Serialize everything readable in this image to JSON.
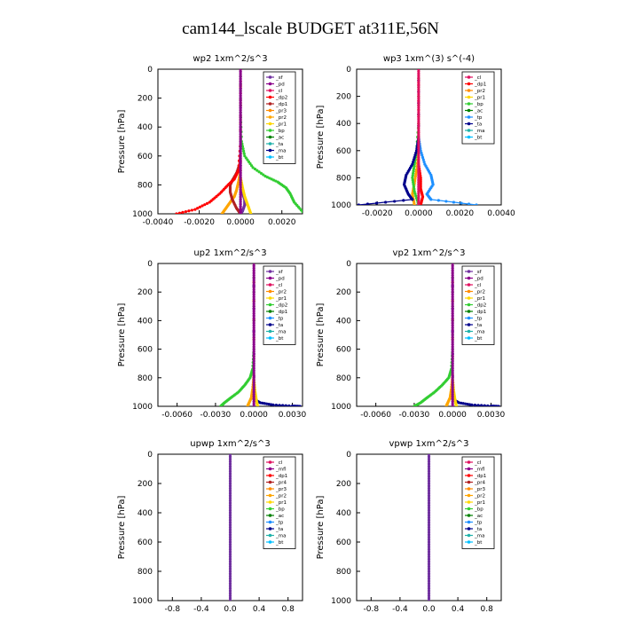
{
  "figure": {
    "title": "cam144_lscale  BUDGET at311E,56N"
  },
  "chart_data": [
    {
      "type": "line",
      "title": "wp2  1xm^2/s^3",
      "ylabel": "Pressure [hPa]",
      "ylim": [
        1000,
        0
      ],
      "xlim": [
        -0.004,
        0.003
      ],
      "xticks": [
        "-0.0040",
        "-0.0020",
        "0.0000",
        "0.0020"
      ],
      "xtick_values": [
        -0.004,
        -0.002,
        0,
        0.002
      ],
      "yticks": [
        "0",
        "200",
        "400",
        "600",
        "800",
        "1000"
      ],
      "yref": 1000,
      "legend_position": "top-right",
      "legend": [
        {
          "name": "_sf",
          "color": "#7030a0"
        },
        {
          "name": "_pd",
          "color": "#8b008b"
        },
        {
          "name": "_cl",
          "color": "#e0115f"
        },
        {
          "name": "_dp2",
          "color": "#ff0000"
        },
        {
          "name": "_dp1",
          "color": "#b22222"
        },
        {
          "name": "_pr3",
          "color": "#ff8c00"
        },
        {
          "name": "_pr2",
          "color": "#ffa500"
        },
        {
          "name": "_pr1",
          "color": "#ffd700"
        },
        {
          "name": "_bp",
          "color": "#32cd32"
        },
        {
          "name": "_ac",
          "color": "#008000"
        },
        {
          "name": "_ta",
          "color": "#20b2aa"
        },
        {
          "name": "_ma",
          "color": "#00008b"
        },
        {
          "name": "_bt",
          "color": "#00bfff"
        }
      ],
      "series": [
        {
          "color": "#8b008b",
          "x": [
            0,
            0,
            0,
            0,
            0,
            0,
            0,
            0,
            0,
            0,
            0
          ],
          "y": [
            0,
            100,
            200,
            300,
            400,
            500,
            600,
            700,
            800,
            900,
            1000
          ]
        },
        {
          "color": "#32cd32",
          "x": [
            0,
            0,
            5e-05,
            0.0002,
            0.0006,
            0.0012,
            0.0018,
            0.0022,
            0.0024,
            0.0026,
            0.003
          ],
          "y": [
            0,
            300,
            500,
            600,
            680,
            740,
            780,
            820,
            860,
            920,
            985
          ]
        },
        {
          "color": "#ff0000",
          "x": [
            0,
            0,
            -0.0001,
            -0.0003,
            -0.0006,
            -0.001,
            -0.0015,
            -0.0022,
            -0.0031
          ],
          "y": [
            0,
            500,
            700,
            760,
            800,
            860,
            920,
            970,
            1000
          ]
        },
        {
          "color": "#b22222",
          "x": [
            0,
            0,
            -0.0002,
            -0.0004,
            -0.0005,
            -0.0005,
            -0.0004,
            -0.0002,
            0
          ],
          "y": [
            0,
            640,
            720,
            770,
            800,
            850,
            900,
            960,
            1000
          ]
        },
        {
          "color": "#ffa500",
          "x": [
            0,
            0,
            -0.0001,
            -0.0002,
            -0.0003,
            -0.0005,
            -0.0007,
            -0.0009
          ],
          "y": [
            0,
            700,
            780,
            840,
            880,
            920,
            960,
            1000
          ]
        },
        {
          "color": "#ffd700",
          "x": [
            0,
            0,
            0.0001,
            0.0002,
            0.0003,
            0.0004,
            0.0005
          ],
          "y": [
            0,
            750,
            820,
            880,
            920,
            960,
            1000
          ]
        },
        {
          "color": "#7030a0",
          "x": [
            0,
            0,
            0.0001,
            0.0002,
            0.0002,
            0.0001,
            0
          ],
          "y": [
            0,
            800,
            860,
            900,
            940,
            980,
            1000
          ]
        }
      ]
    },
    {
      "type": "line",
      "title": "wp3  1xm^(3) s^(-4)",
      "ylabel": "Pressure [hPa]",
      "ylim": [
        1000,
        0
      ],
      "xlim": [
        -0.003,
        0.004
      ],
      "xticks": [
        "-0.0020",
        "0.0000",
        "0.0020",
        "0.0040"
      ],
      "xtick_values": [
        -0.002,
        0,
        0.002,
        0.004
      ],
      "yticks": [
        "0",
        "200",
        "400",
        "600",
        "800",
        "1000"
      ],
      "yref": 1000,
      "legend_position": "top-right",
      "legend": [
        {
          "name": "_cl",
          "color": "#e0115f"
        },
        {
          "name": "_dp1",
          "color": "#ff0000"
        },
        {
          "name": "_pr2",
          "color": "#ff8c00"
        },
        {
          "name": "_pr1",
          "color": "#ffd700"
        },
        {
          "name": "_bp",
          "color": "#32cd32"
        },
        {
          "name": "_ac",
          "color": "#008000"
        },
        {
          "name": "_tp",
          "color": "#1e90ff"
        },
        {
          "name": "_ta",
          "color": "#00008b"
        },
        {
          "name": "_ma",
          "color": "#20b2aa"
        },
        {
          "name": "_bt",
          "color": "#00bfff"
        }
      ],
      "series": [
        {
          "color": "#e0115f",
          "x": [
            0,
            0,
            0,
            0,
            0,
            0,
            0,
            0,
            0,
            0,
            0
          ],
          "y": [
            0,
            100,
            200,
            300,
            400,
            500,
            600,
            700,
            800,
            900,
            1000
          ]
        },
        {
          "color": "#00008b",
          "x": [
            0,
            0,
            -0.0001,
            -0.0003,
            -0.0006,
            -0.0007,
            -0.0005,
            -0.0003,
            -0.0029
          ],
          "y": [
            0,
            500,
            600,
            700,
            780,
            850,
            920,
            960,
            1000
          ]
        },
        {
          "color": "#1e90ff",
          "x": [
            0,
            0,
            0.0001,
            0.0003,
            0.0006,
            0.0007,
            0.0004,
            0.0006,
            0.0028
          ],
          "y": [
            0,
            500,
            600,
            700,
            780,
            850,
            920,
            960,
            1000
          ]
        },
        {
          "color": "#32cd32",
          "x": [
            0,
            0,
            -0.0001,
            -0.0002,
            -0.0003,
            -0.0002,
            0
          ],
          "y": [
            0,
            400,
            600,
            700,
            800,
            900,
            1000
          ]
        },
        {
          "color": "#ffa500",
          "x": [
            0,
            0,
            -0.0001,
            -0.0002,
            -0.0003,
            -0.0002
          ],
          "y": [
            0,
            600,
            740,
            840,
            920,
            1000
          ]
        },
        {
          "color": "#ff0000",
          "x": [
            0,
            0,
            0.0001,
            0.0001,
            0.0002,
            0.0001
          ],
          "y": [
            0,
            700,
            800,
            880,
            940,
            1000
          ]
        }
      ]
    },
    {
      "type": "line",
      "title": "up2  1xm^2/s^3",
      "ylabel": "Pressure [hPa]",
      "ylim": [
        1000,
        0
      ],
      "xlim": [
        -0.0075,
        0.0038
      ],
      "xticks": [
        "-0.0060",
        "-0.0030",
        "0.0000",
        "0.0030"
      ],
      "xtick_values": [
        -0.006,
        -0.003,
        0,
        0.003
      ],
      "yticks": [
        "0",
        "200",
        "400",
        "600",
        "800",
        "1000"
      ],
      "yref": 1000,
      "legend_position": "top-right",
      "legend": [
        {
          "name": "_sf",
          "color": "#7030a0"
        },
        {
          "name": "_pd",
          "color": "#8b008b"
        },
        {
          "name": "_cl",
          "color": "#e0115f"
        },
        {
          "name": "_pr2",
          "color": "#ff8c00"
        },
        {
          "name": "_pr1",
          "color": "#ffd700"
        },
        {
          "name": "_dp2",
          "color": "#32cd32"
        },
        {
          "name": "_dp1",
          "color": "#008000"
        },
        {
          "name": "_tp",
          "color": "#1e90ff"
        },
        {
          "name": "_ta",
          "color": "#00008b"
        },
        {
          "name": "_ma",
          "color": "#20b2aa"
        },
        {
          "name": "_bt",
          "color": "#00bfff"
        }
      ],
      "series": [
        {
          "color": "#8b008b",
          "x": [
            0,
            0,
            0,
            0,
            0,
            0,
            0,
            0,
            0,
            0,
            0
          ],
          "y": [
            0,
            100,
            200,
            300,
            400,
            500,
            600,
            700,
            800,
            900,
            1000
          ]
        },
        {
          "color": "#32cd32",
          "x": [
            0,
            0,
            -0.0001,
            -0.0003,
            -0.0007,
            -0.0012,
            -0.0018,
            -0.0023,
            -0.0026
          ],
          "y": [
            0,
            600,
            740,
            800,
            850,
            900,
            940,
            975,
            1000
          ]
        },
        {
          "color": "#ffa500",
          "x": [
            0,
            0,
            -0.0001,
            -0.0002,
            -0.0004,
            -0.0005
          ],
          "y": [
            0,
            780,
            880,
            940,
            980,
            1000
          ]
        },
        {
          "color": "#ffd700",
          "x": [
            0,
            0,
            0.0001,
            0.0002,
            0.0003
          ],
          "y": [
            0,
            800,
            900,
            960,
            1000
          ]
        },
        {
          "color": "#00008b",
          "x": [
            0,
            0,
            0.0005,
            0.0015,
            0.003,
            0.0036
          ],
          "y": [
            0,
            950,
            975,
            990,
            998,
            1000
          ]
        }
      ]
    },
    {
      "type": "line",
      "title": "vp2  1xm^2/s^3",
      "ylabel": "Pressure [hPa]",
      "ylim": [
        1000,
        0
      ],
      "xlim": [
        -0.0075,
        0.0038
      ],
      "xticks": [
        "-0.0060",
        "-0.0030",
        "0.0000",
        "0.0030"
      ],
      "xtick_values": [
        -0.006,
        -0.003,
        0,
        0.003
      ],
      "yticks": [
        "0",
        "200",
        "400",
        "600",
        "800",
        "1000"
      ],
      "yref": 1000,
      "legend_position": "top-right",
      "legend": [
        {
          "name": "_sf",
          "color": "#7030a0"
        },
        {
          "name": "_pd",
          "color": "#8b008b"
        },
        {
          "name": "_cl",
          "color": "#e0115f"
        },
        {
          "name": "_pr2",
          "color": "#ff8c00"
        },
        {
          "name": "_pr1",
          "color": "#ffd700"
        },
        {
          "name": "_dp2",
          "color": "#32cd32"
        },
        {
          "name": "_dp1",
          "color": "#008000"
        },
        {
          "name": "_tp",
          "color": "#1e90ff"
        },
        {
          "name": "_ta",
          "color": "#00008b"
        },
        {
          "name": "_ma",
          "color": "#20b2aa"
        },
        {
          "name": "_bt",
          "color": "#00bfff"
        }
      ],
      "series": [
        {
          "color": "#8b008b",
          "x": [
            0,
            0,
            0,
            0,
            0,
            0,
            0,
            0,
            0,
            0,
            0
          ],
          "y": [
            0,
            100,
            200,
            300,
            400,
            500,
            600,
            700,
            800,
            900,
            1000
          ]
        },
        {
          "color": "#32cd32",
          "x": [
            0,
            0,
            -0.0001,
            -0.0003,
            -0.0008,
            -0.0014,
            -0.002,
            -0.0025,
            -0.003
          ],
          "y": [
            0,
            600,
            740,
            800,
            850,
            900,
            940,
            975,
            1000
          ]
        },
        {
          "color": "#ffa500",
          "x": [
            0,
            0,
            -0.0001,
            -0.0002,
            -0.0004,
            -0.0005
          ],
          "y": [
            0,
            780,
            880,
            940,
            980,
            1000
          ]
        },
        {
          "color": "#ffd700",
          "x": [
            0,
            0,
            0.0001,
            0.0002,
            0.0003
          ],
          "y": [
            0,
            800,
            900,
            960,
            1000
          ]
        },
        {
          "color": "#00008b",
          "x": [
            0,
            0,
            0.0005,
            0.0015,
            0.003,
            0.0036
          ],
          "y": [
            0,
            950,
            975,
            990,
            998,
            1000
          ]
        }
      ]
    },
    {
      "type": "line",
      "title": "upwp  1xm^2/s^3",
      "ylabel": "Pressure [hPa]",
      "ylim": [
        1000,
        0
      ],
      "xlim": [
        -1.0,
        1.0
      ],
      "xticks": [
        "-0.8",
        "-0.4",
        "0.0",
        "0.4",
        "0.8"
      ],
      "xtick_values": [
        -0.8,
        -0.4,
        0,
        0.4,
        0.8
      ],
      "yticks": [
        "0",
        "200",
        "400",
        "600",
        "800",
        "1000"
      ],
      "yref": 1000,
      "legend_position": "top-right",
      "legend": [
        {
          "name": "_cl",
          "color": "#e0115f"
        },
        {
          "name": "_mfl",
          "color": "#8b008b"
        },
        {
          "name": "_dp1",
          "color": "#ff0000"
        },
        {
          "name": "_pr4",
          "color": "#b22222"
        },
        {
          "name": "_pr3",
          "color": "#ff8c00"
        },
        {
          "name": "_pr2",
          "color": "#ffa500"
        },
        {
          "name": "_pr1",
          "color": "#ffd700"
        },
        {
          "name": "_bp",
          "color": "#32cd32"
        },
        {
          "name": "_ac",
          "color": "#008000"
        },
        {
          "name": "_tp",
          "color": "#1e90ff"
        },
        {
          "name": "_ta",
          "color": "#00008b"
        },
        {
          "name": "_ma",
          "color": "#20b2aa"
        },
        {
          "name": "_bt",
          "color": "#00bfff"
        }
      ],
      "series": [
        {
          "color": "#7030a0",
          "x": [
            0,
            0,
            0,
            0,
            0,
            0,
            0,
            0,
            0,
            0,
            0
          ],
          "y": [
            0,
            100,
            200,
            300,
            400,
            500,
            600,
            700,
            800,
            900,
            1000
          ]
        }
      ]
    },
    {
      "type": "line",
      "title": "vpwp  1xm^2/s^3",
      "ylabel": "Pressure [hPa]",
      "ylim": [
        1000,
        0
      ],
      "xlim": [
        -1.0,
        1.0
      ],
      "xticks": [
        "-0.8",
        "-0.4",
        "0.0",
        "0.4",
        "0.8"
      ],
      "xtick_values": [
        -0.8,
        -0.4,
        0,
        0.4,
        0.8
      ],
      "yticks": [
        "0",
        "200",
        "400",
        "600",
        "800",
        "1000"
      ],
      "yref": 1000,
      "legend_position": "top-right",
      "legend": [
        {
          "name": "_cl",
          "color": "#e0115f"
        },
        {
          "name": "_mfl",
          "color": "#8b008b"
        },
        {
          "name": "_dp1",
          "color": "#ff0000"
        },
        {
          "name": "_pr4",
          "color": "#b22222"
        },
        {
          "name": "_pr3",
          "color": "#ff8c00"
        },
        {
          "name": "_pr2",
          "color": "#ffa500"
        },
        {
          "name": "_pr1",
          "color": "#ffd700"
        },
        {
          "name": "_bp",
          "color": "#32cd32"
        },
        {
          "name": "_ac",
          "color": "#008000"
        },
        {
          "name": "_tp",
          "color": "#1e90ff"
        },
        {
          "name": "_ta",
          "color": "#00008b"
        },
        {
          "name": "_ma",
          "color": "#20b2aa"
        },
        {
          "name": "_bt",
          "color": "#00bfff"
        }
      ],
      "series": [
        {
          "color": "#7030a0",
          "x": [
            0,
            0,
            0,
            0,
            0,
            0,
            0,
            0,
            0,
            0,
            0
          ],
          "y": [
            0,
            100,
            200,
            300,
            400,
            500,
            600,
            700,
            800,
            900,
            1000
          ]
        }
      ]
    }
  ]
}
